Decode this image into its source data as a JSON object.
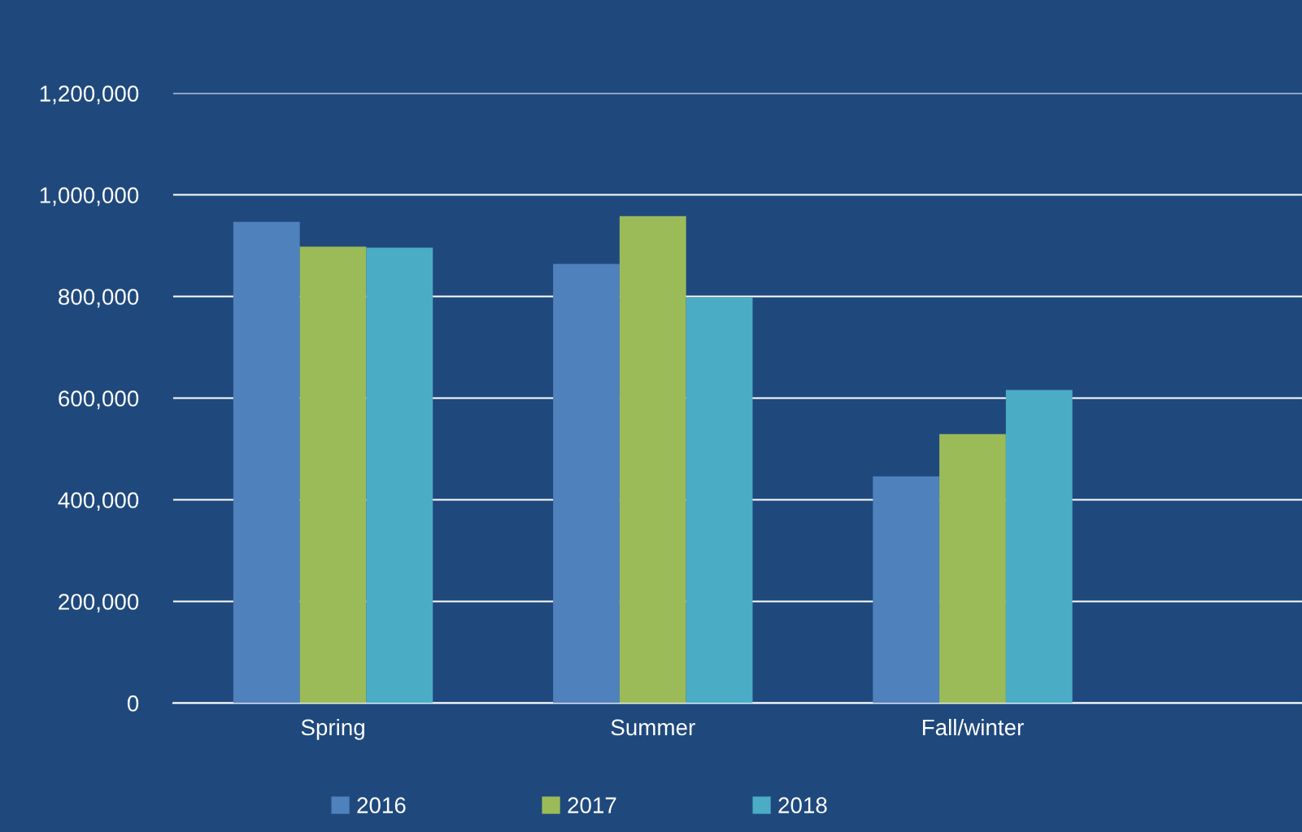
{
  "chart_data": {
    "type": "bar",
    "categories": [
      "Spring",
      "Summer",
      "Fall/winter"
    ],
    "series": [
      {
        "name": "2016",
        "color": "#4f81bd",
        "values": [
          947000,
          864000,
          446000
        ]
      },
      {
        "name": "2017",
        "color": "#9bbb59",
        "values": [
          898000,
          958000,
          529000
        ]
      },
      {
        "name": "2018",
        "color": "#4bacc6",
        "values": [
          896000,
          798000,
          616000
        ]
      }
    ],
    "ylim": [
      0,
      1200000
    ],
    "yticks": [
      {
        "value": 0,
        "label": "0"
      },
      {
        "value": 200000,
        "label": "200,000"
      },
      {
        "value": 400000,
        "label": "400,000"
      },
      {
        "value": 600000,
        "label": "600,000"
      },
      {
        "value": 800000,
        "label": "800,000"
      },
      {
        "value": 1000000,
        "label": "1,000,000"
      },
      {
        "value": 1200000,
        "label": "1,200,000"
      }
    ],
    "grid": "y",
    "legend": "bottom"
  }
}
